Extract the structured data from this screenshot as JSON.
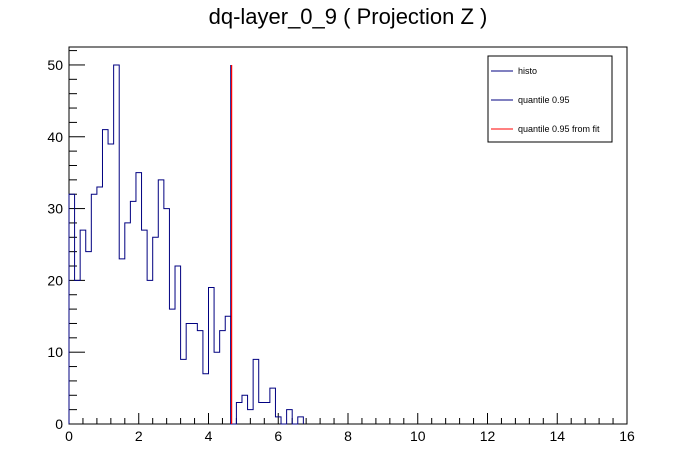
{
  "chart_data": {
    "type": "histogram",
    "title": "dq-layer_0_9 ( Projection Z )",
    "xlabel": "",
    "ylabel": "",
    "xlim": [
      0,
      16
    ],
    "ylim": [
      0,
      52.5
    ],
    "x_ticks": [
      0,
      2,
      4,
      6,
      8,
      10,
      12,
      14,
      16
    ],
    "y_ticks": [
      0,
      10,
      20,
      30,
      40,
      50
    ],
    "bin_width": 0.16,
    "bins_start": 0,
    "grid": false,
    "legend_position": "top-right",
    "series": [
      {
        "name": "histo",
        "color": "#000080",
        "values": [
          32,
          20,
          27,
          24,
          32,
          33,
          41,
          39,
          50,
          23,
          28,
          31,
          35,
          27,
          20,
          26,
          34,
          30,
          16,
          22,
          9,
          14,
          14,
          13,
          7,
          19,
          10,
          13,
          15,
          0,
          3,
          4,
          2,
          9,
          3,
          3,
          5,
          1,
          0,
          2,
          0,
          1
        ]
      }
    ],
    "lines": [
      {
        "name": "quantile 0.95",
        "color": "#000080",
        "x": 4.64,
        "y_top": 50
      },
      {
        "name": "quantile 0.95 from fit",
        "color": "#ff0000",
        "x": 4.64,
        "y_top": 50
      }
    ],
    "legend": [
      {
        "label": "histo",
        "color": "#000080"
      },
      {
        "label": "quantile 0.95",
        "color": "#000080"
      },
      {
        "label": "quantile 0.95 from fit",
        "color": "#ff0000"
      }
    ]
  }
}
